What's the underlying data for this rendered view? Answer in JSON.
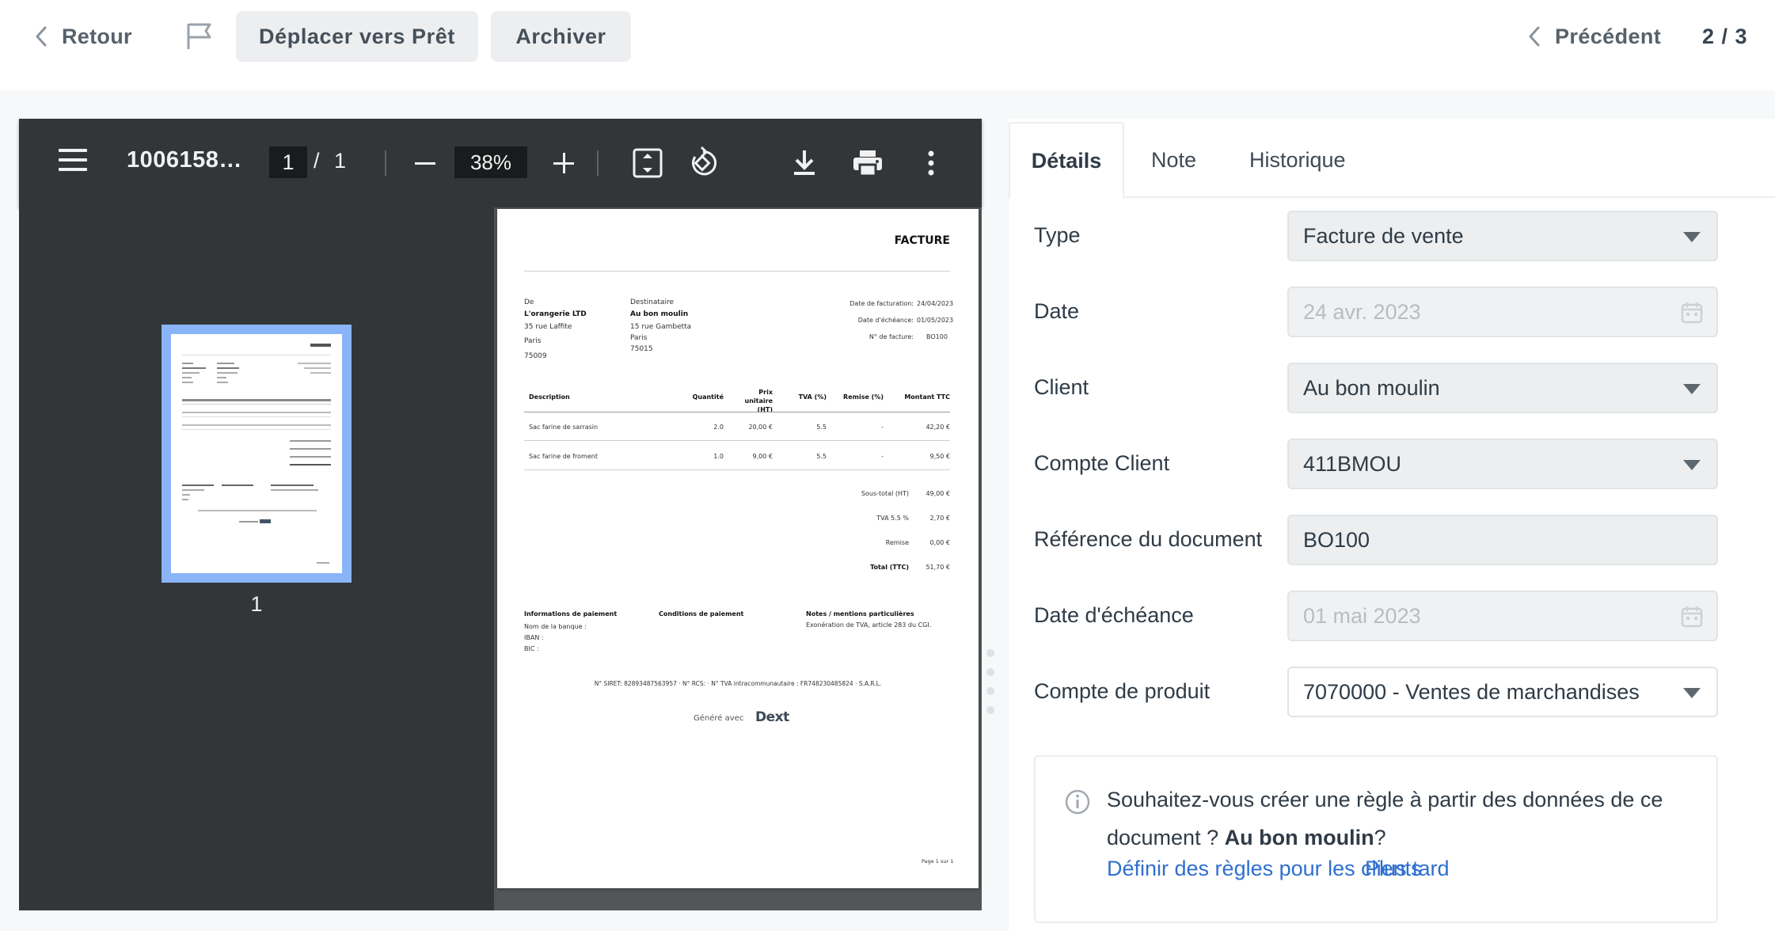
{
  "topbar": {
    "back_label": "Retour",
    "move_label": "Déplacer vers Prêt",
    "archive_label": "Archiver",
    "prev_label": "Précédent",
    "count": "2 / 3"
  },
  "viewer": {
    "title": "1006158…",
    "page_current": "1",
    "page_separator": "/",
    "page_total": "1",
    "zoom": "38%",
    "thumbnail_number": "1"
  },
  "invoice": {
    "heading": "FACTURE",
    "from_label": "De",
    "from_name": "L'orangerie LTD",
    "from_street": "35 rue Laffite",
    "from_city": "Paris",
    "from_zip": "75009",
    "to_label": "Destinataire",
    "to_name": "Au bon moulin",
    "to_street": "15 rue Gambetta",
    "to_city": "Paris",
    "to_zip": "75015",
    "date_label": "Date de facturation:",
    "date_value": "24/04/2023",
    "due_label": "Date d'échéance:",
    "due_value": "01/05/2023",
    "number_label": "N° de facture:",
    "number_value": "BO100",
    "columns": [
      "Description",
      "Quantité",
      "Prix unitaire (HT)",
      "TVA (%)",
      "Remise (%)",
      "Montant TTC"
    ],
    "rows": [
      [
        "Sac farine de sarrasin",
        "2.0",
        "20,00 €",
        "5.5",
        "-",
        "42,20 €"
      ],
      [
        "Sac farine de froment",
        "1.0",
        "9,00 €",
        "5.5",
        "-",
        "9,50 €"
      ]
    ],
    "totals": [
      {
        "label": "Sous-total (HT)",
        "value": "49,00 €"
      },
      {
        "label": "TVA 5.5 %",
        "value": "2,70 €"
      },
      {
        "label": "Remise",
        "value": "0,00 €"
      },
      {
        "label": "Total (TTC)",
        "value": "51,70 €"
      }
    ],
    "payment_title": "Informations de paiement",
    "payment_bank": "Nom de la banque :",
    "payment_iban": "IBAN :",
    "payment_bic": "BIC :",
    "conditions_title": "Conditions de paiement",
    "notes_title": "Notes / mentions particulières",
    "notes_text": "Exonération de TVA, article 283 du CGI.",
    "legal": "N° SIRET: 82893487563957 · N° RCS: · N° TVA intracommunautaire : FR748230485824 · S.A.R.L.",
    "generated_prefix": "Généré avec",
    "generated_brand": "Dext",
    "page_footer": "Page 1 sur 1"
  },
  "panel": {
    "tabs": [
      "Détails",
      "Note",
      "Historique"
    ],
    "fields": {
      "type_label": "Type",
      "type_value": "Facture de vente",
      "date_label": "Date",
      "date_value": "24 avr. 2023",
      "client_label": "Client",
      "client_value": "Au bon moulin",
      "account_label": "Compte Client",
      "account_value": "411BMOU",
      "reference_label": "Référence du document",
      "reference_value": "BO100",
      "due_label": "Date d'échéance",
      "due_value": "01 mai 2023",
      "product_label": "Compte de produit",
      "product_value": "7070000 - Ventes de marchandises"
    },
    "rule": {
      "text_before": "Souhaitez-vous créer une règle à partir des données de ce document ?",
      "client_name": "Au bon moulin",
      "text_after": "?",
      "define_link": "Définir des règles pour les clients",
      "later_link": "Plus tard"
    }
  },
  "colors": {
    "link": "#2f6fd0",
    "viewer_bg": "#323639",
    "thumb_highlight": "#8ab4f8",
    "field_bg": "#eceef0"
  },
  "icons": [
    "chevron-left-icon",
    "flag-icon",
    "menu-icon",
    "fit-page-icon",
    "rotate-icon",
    "download-icon",
    "print-icon",
    "more-vert-icon",
    "calendar-icon",
    "info-icon",
    "caret-down-icon"
  ]
}
